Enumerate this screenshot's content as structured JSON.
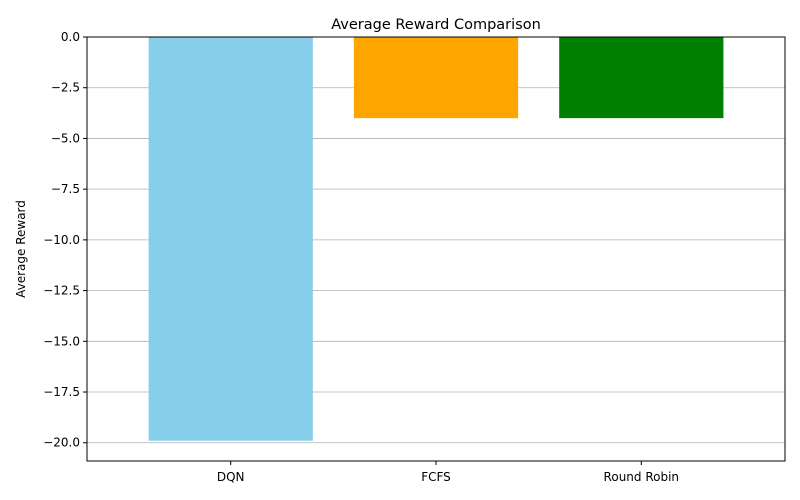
{
  "chart_data": {
    "type": "bar",
    "title": "Average Reward Comparison",
    "xlabel": "",
    "ylabel": "Average Reward",
    "categories": [
      "DQN",
      "FCFS",
      "Round Robin"
    ],
    "values": [
      -19.9,
      -4.0,
      -4.0
    ],
    "colors": [
      "#87ceeb",
      "#ffa500",
      "#008000"
    ],
    "ylim": [
      -20.9,
      0.0
    ],
    "yticks": [
      0.0,
      -2.5,
      -5.0,
      -7.5,
      -10.0,
      -12.5,
      -15.0,
      -17.5,
      -20.0
    ],
    "ytick_labels": [
      "0.0",
      "−2.5",
      "−5.0",
      "−7.5",
      "−10.0",
      "−12.5",
      "−15.0",
      "−17.5",
      "−20.0"
    ],
    "grid": "y",
    "legend": "none"
  }
}
